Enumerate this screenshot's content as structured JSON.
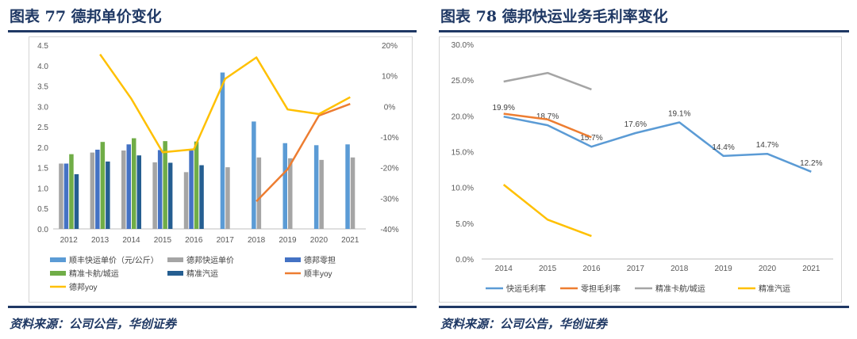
{
  "left": {
    "title": "图表 77  德邦单价变化",
    "source": "资料来源：公司公告，华创证券",
    "chart_data": {
      "type": "bar+line",
      "categories": [
        "2012",
        "2013",
        "2014",
        "2015",
        "2016",
        "2017",
        "2018",
        "2019",
        "2020",
        "2021"
      ],
      "ylim": [
        0,
        4.5
      ],
      "y_ticks": [
        "0.0",
        "0.5",
        "1.0",
        "1.5",
        "2.0",
        "2.5",
        "3.0",
        "3.5",
        "4.0",
        "4.5"
      ],
      "y2lim": [
        -40,
        20
      ],
      "y2_ticks": [
        "20%",
        "10%",
        "0%",
        "-10%",
        "-20%",
        "-30%",
        "-40%"
      ],
      "bar_series": [
        {
          "name": "顺丰快运单价（元/公斤）",
          "color": "#5b9bd5",
          "values": [
            null,
            null,
            null,
            null,
            null,
            3.83,
            2.63,
            2.1,
            2.05,
            2.07
          ]
        },
        {
          "name": "德邦快运单价",
          "color": "#a5a5a5",
          "values": [
            1.6,
            1.87,
            1.92,
            1.63,
            1.39,
            1.51,
            1.75,
            1.73,
            1.69,
            1.75
          ]
        },
        {
          "name": "德邦零担",
          "color": "#4472c4",
          "values": [
            1.6,
            1.94,
            2.07,
            1.93,
            1.92,
            null,
            null,
            null,
            null,
            null
          ]
        },
        {
          "name": "精准卡航/城运",
          "color": "#70ad47",
          "values": [
            1.83,
            2.13,
            2.22,
            2.15,
            2.14,
            null,
            null,
            null,
            null,
            null
          ]
        },
        {
          "name": "精准汽运",
          "color": "#255e91",
          "values": [
            1.34,
            1.65,
            1.8,
            1.62,
            1.56,
            null,
            null,
            null,
            null,
            null
          ]
        }
      ],
      "line_series": [
        {
          "name": "顺丰yoy",
          "color": "#ed7d31",
          "values": [
            null,
            null,
            null,
            null,
            null,
            null,
            -31,
            -20.5,
            -3,
            0.8
          ]
        },
        {
          "name": "德邦yoy",
          "color": "#ffc000",
          "values": [
            null,
            17,
            2.5,
            -15,
            -14,
            9,
            16,
            -1,
            -2.5,
            3
          ]
        }
      ],
      "legend": [
        "顺丰快运单价（元/公斤）",
        "德邦快运单价",
        "德邦零担",
        "精准卡航/城运",
        "精准汽运",
        "顺丰yoy",
        "德邦yoy"
      ]
    }
  },
  "right": {
    "title": "图表 78  德邦快运业务毛利率变化",
    "source": "资料来源：公司公告，华创证券",
    "chart_data": {
      "type": "line",
      "categories": [
        "2014",
        "2015",
        "2016",
        "2017",
        "2018",
        "2019",
        "2020",
        "2021"
      ],
      "ylim": [
        0,
        30
      ],
      "y_ticks": [
        "0.0%",
        "5.0%",
        "10.0%",
        "15.0%",
        "20.0%",
        "25.0%",
        "30.0%"
      ],
      "series": [
        {
          "name": "快运毛利率",
          "color": "#5b9bd5",
          "values": [
            19.9,
            18.7,
            15.7,
            17.6,
            19.1,
            14.4,
            14.7,
            12.2
          ],
          "labels": [
            "19.9%",
            "18.7%",
            "15.7%",
            "17.6%",
            "19.1%",
            "14.4%",
            "14.7%",
            "12.2%"
          ]
        },
        {
          "name": "零担毛利率",
          "color": "#ed7d31",
          "values": [
            20.3,
            19.5,
            17.0,
            null,
            null,
            null,
            null,
            null
          ]
        },
        {
          "name": "精准卡航/城运",
          "color": "#a5a5a5",
          "values": [
            24.8,
            26.0,
            23.7,
            null,
            null,
            null,
            null,
            null
          ]
        },
        {
          "name": "精准汽运",
          "color": "#ffc000",
          "values": [
            10.4,
            5.5,
            3.2,
            null,
            null,
            null,
            null,
            null
          ]
        }
      ],
      "legend": [
        "快运毛利率",
        "零担毛利率",
        "精准卡航/城运",
        "精准汽运"
      ]
    }
  }
}
